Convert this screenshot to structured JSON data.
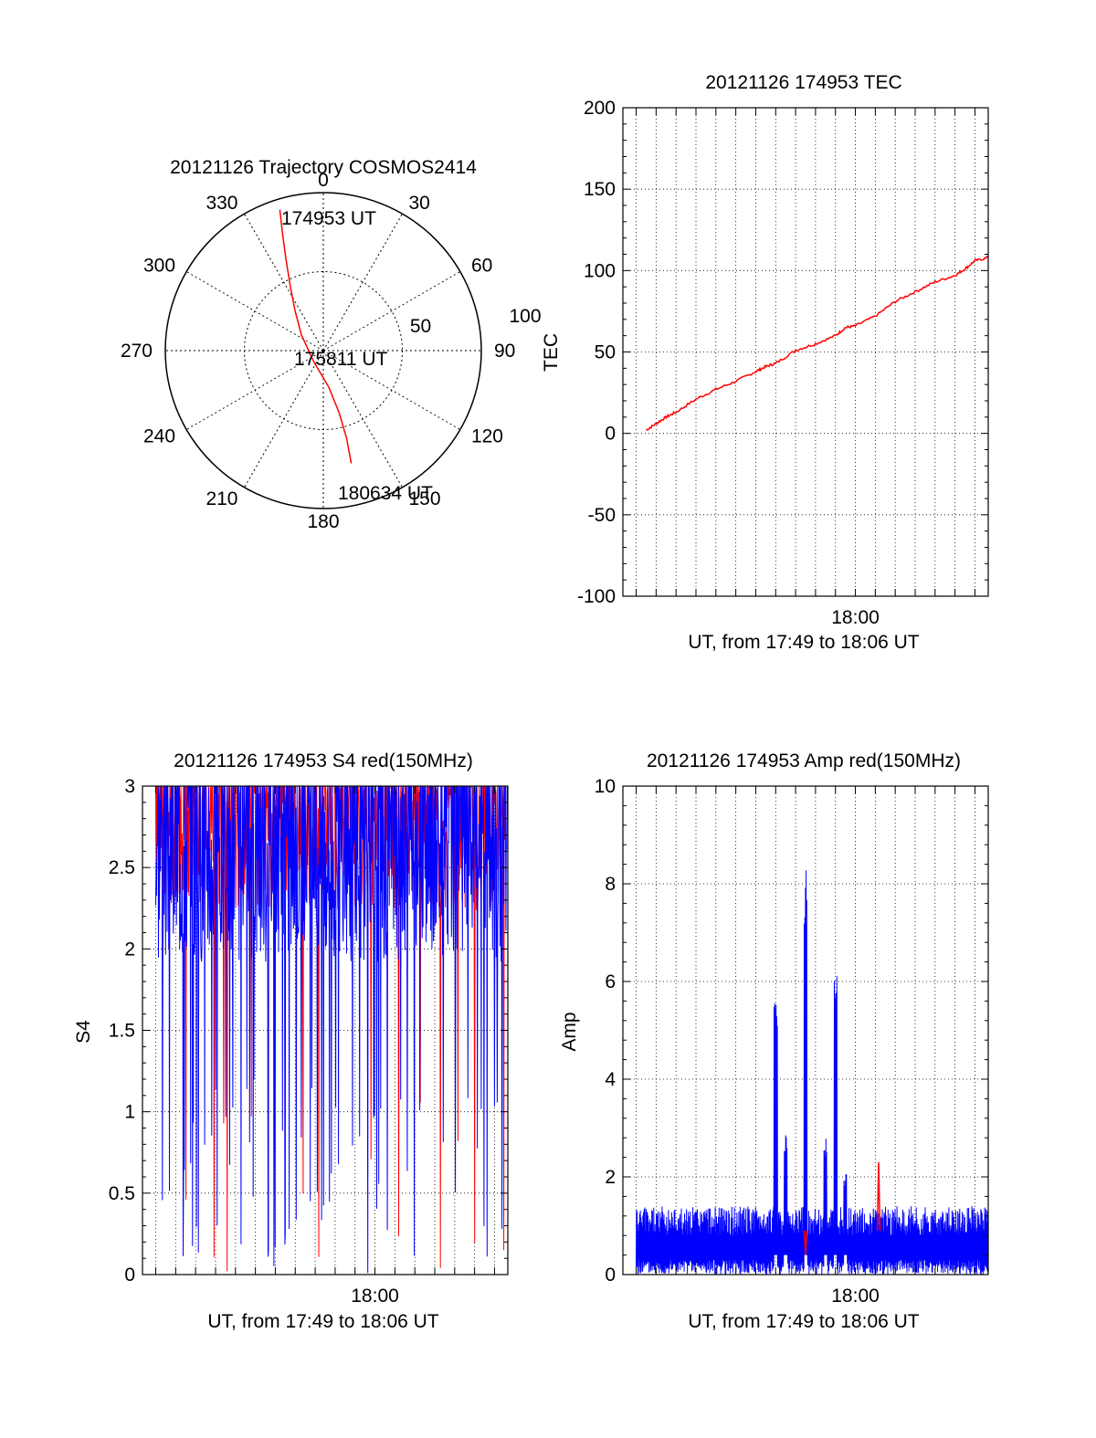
{
  "chart_data": [
    {
      "id": "trajectory",
      "type": "scatter",
      "subtype": "polar",
      "title": "20121126 Trajectory COSMOS2414",
      "angle_labels": [
        {
          "angle": 0,
          "label": "0"
        },
        {
          "angle": 30,
          "label": "30"
        },
        {
          "angle": 60,
          "label": "60"
        },
        {
          "angle": 90,
          "label": "90"
        },
        {
          "angle": 120,
          "label": "120"
        },
        {
          "angle": 150,
          "label": "150"
        },
        {
          "angle": 180,
          "label": "180"
        },
        {
          "angle": 210,
          "label": "210"
        },
        {
          "angle": 240,
          "label": "240"
        },
        {
          "angle": 270,
          "label": "270"
        },
        {
          "angle": 300,
          "label": "300"
        },
        {
          "angle": 330,
          "label": "330"
        }
      ],
      "radial_labels": [
        "50",
        "100"
      ],
      "radial_values": [
        50,
        100
      ],
      "rlim": [
        0,
        100
      ],
      "track_labels": [
        "174953 UT",
        "175811 UT",
        "180634 UT"
      ],
      "series": [
        {
          "color": "#ff0000",
          "points": [
            [
              -27.5,
              6.0
            ],
            [
              -25.7,
              14.9
            ],
            [
              -23.5,
              23.8
            ],
            [
              -21.0,
              32.7
            ],
            [
              -17.8,
              41.7
            ],
            [
              -13.9,
              50.0
            ],
            [
              -6.0,
              59.5
            ],
            [
              3.5,
              68.5
            ],
            [
              10.0,
              77.4
            ],
            [
              14.7,
              86.3
            ],
            [
              17.7,
              95.2
            ]
          ]
        }
      ],
      "color": "#ff0000"
    },
    {
      "id": "tec",
      "type": "line",
      "title": "20121126 174953 TEC",
      "xlabel": "UT, from 17:49 to 18:06 UT",
      "ylabel": "TEC",
      "xlim": [
        "17:48:20",
        "18:06:40"
      ],
      "ylim": [
        -100,
        200
      ],
      "yticks": [
        -100,
        -50,
        0,
        50,
        100,
        150,
        200
      ],
      "yticklabels": [
        "-100",
        "-50",
        "0",
        "50",
        "100",
        "150",
        "200"
      ],
      "xtick_labels": [
        "18:00"
      ],
      "grid": true,
      "series": [
        {
          "color": "#ff0000",
          "x": [
            "17:49:30",
            "17:50:00",
            "17:50:30",
            "17:51:00",
            "17:52:00",
            "17:53:00",
            "17:54:00",
            "17:55:00",
            "17:55:30",
            "17:56:00",
            "17:57:00",
            "17:58:00",
            "17:59:00",
            "17:59:30",
            "18:00:00",
            "18:01:00",
            "18:02:00",
            "18:03:00",
            "18:04:00",
            "18:05:00",
            "18:05:30",
            "18:06:00",
            "18:06:40"
          ],
          "y": [
            2,
            6,
            10,
            13,
            21,
            27,
            32,
            38,
            41,
            43,
            51,
            55,
            60,
            65,
            66,
            72,
            81,
            87,
            93,
            97,
            101,
            106,
            108
          ]
        }
      ],
      "color": "#ff0000"
    },
    {
      "id": "s4",
      "type": "line",
      "title": "20121126 174953 S4 red(150MHz)",
      "xlabel": "UT, from 17:49 to 18:06 UT",
      "ylabel": "S4",
      "xlim": [
        "17:48:20",
        "18:06:40"
      ],
      "ylim": [
        0,
        3
      ],
      "yticks": [
        0,
        0.5,
        1,
        1.5,
        2,
        2.5,
        3
      ],
      "yticklabels": [
        "0",
        "0.5",
        "1",
        "1.5",
        "2",
        "2.5",
        "3"
      ],
      "xtick_labels": [
        "18:00"
      ],
      "grid": true,
      "series": [
        {
          "color": "#0000ff",
          "note": "dense noisy trace mostly between 1.5 and 3 with deep drops",
          "x": [
            "17:49:00",
            "17:50:00",
            "17:51:00",
            "17:52:00",
            "17:53:00",
            "17:54:00",
            "17:55:00",
            "17:56:00",
            "17:56:30",
            "17:57:00",
            "17:58:00",
            "17:59:00",
            "17:59:30",
            "18:00:00",
            "18:01:00",
            "18:02:00",
            "18:03:00",
            "18:04:00",
            "18:05:00",
            "18:06:00"
          ],
          "y": [
            2.3,
            1.6,
            2.0,
            1.4,
            2.2,
            1.8,
            1.5,
            0.6,
            2.1,
            0.5,
            1.8,
            1.9,
            0.55,
            1.9,
            2.0,
            1.7,
            2.1,
            1.6,
            1.9,
            1.2
          ]
        },
        {
          "color": "#ff0000",
          "note": "spiky trace near the top with drops",
          "x": [
            "17:49:30",
            "17:52:00",
            "17:55:00",
            "17:57:00",
            "18:00:30",
            "18:01:00",
            "18:04:00",
            "18:05:30"
          ],
          "y": [
            2.1,
            1.6,
            2.3,
            2.5,
            0.4,
            0.1,
            0.0,
            2.4
          ]
        }
      ],
      "color": "#0000ff"
    },
    {
      "id": "amp",
      "type": "line",
      "title": "20121126 174953 Amp red(150MHz)",
      "xlabel": "UT, from 17:49 to 18:06 UT",
      "ylabel": "Amp",
      "xlim": [
        "17:48:20",
        "18:06:40"
      ],
      "ylim": [
        0,
        10
      ],
      "yticks": [
        0,
        2,
        4,
        6,
        8,
        10
      ],
      "yticklabels": [
        "0",
        "2",
        "4",
        "6",
        "8",
        "10"
      ],
      "xtick_labels": [
        "18:00"
      ],
      "grid": true,
      "series": [
        {
          "color": "#0000ff",
          "note": "noisy baseline about 0.7-1.3 with spikes",
          "x": [
            "17:56:00",
            "17:56:30",
            "17:57:30",
            "17:58:30",
            "17:59:00",
            "17:59:30"
          ],
          "y": [
            5.8,
            2.9,
            8.3,
            2.8,
            6.2,
            2.1
          ]
        },
        {
          "color": "#ff0000",
          "x": [
            "17:57:30",
            "18:01:10"
          ],
          "y": [
            0.4,
            2.3
          ]
        }
      ],
      "color": "#0000ff"
    }
  ]
}
